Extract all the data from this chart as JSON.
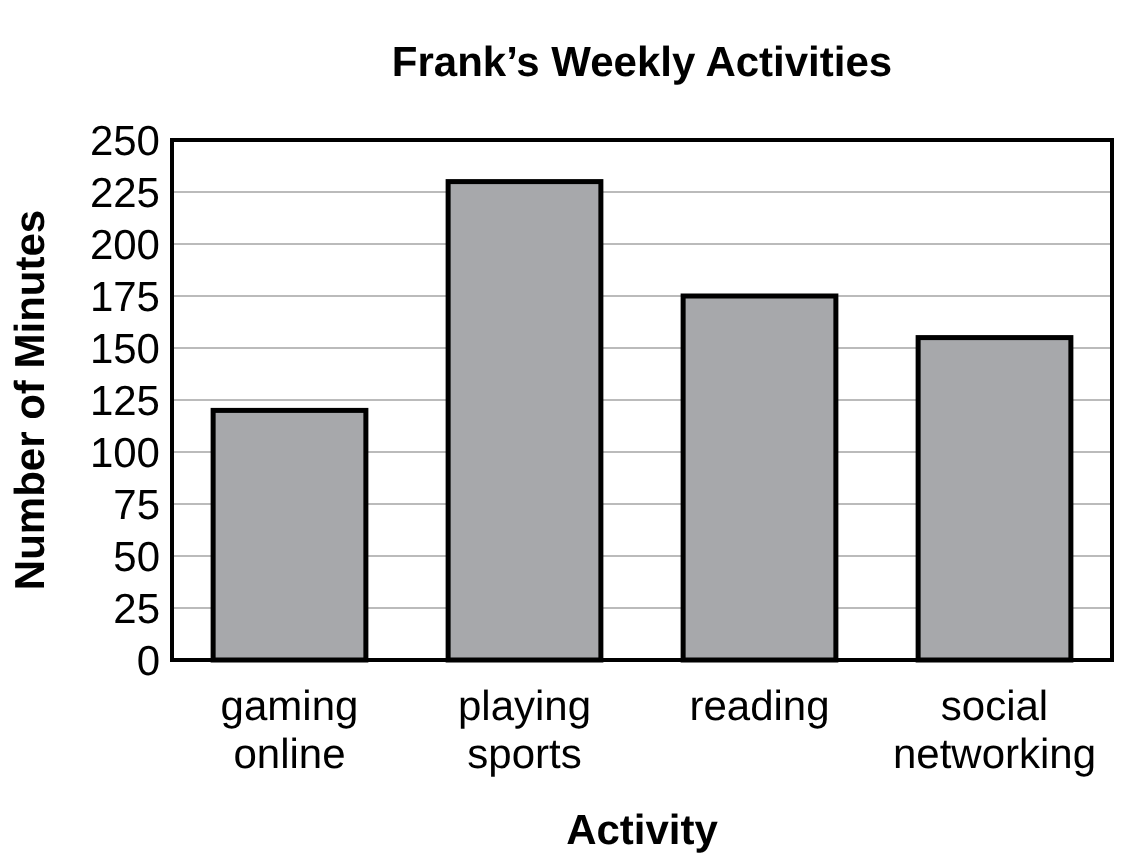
{
  "chart_data": {
    "type": "bar",
    "title": "Frank’s Weekly Activities",
    "xlabel": "Activity",
    "ylabel": "Number of Minutes",
    "categories": [
      "gaming online",
      "playing sports",
      "reading",
      "social networking"
    ],
    "values": [
      120,
      230,
      175,
      155
    ],
    "color": "#a7a8ab",
    "ylim": [
      0,
      250
    ],
    "yticks": [
      0,
      25,
      50,
      75,
      100,
      125,
      150,
      175,
      200,
      225,
      250
    ],
    "grid": "y"
  }
}
